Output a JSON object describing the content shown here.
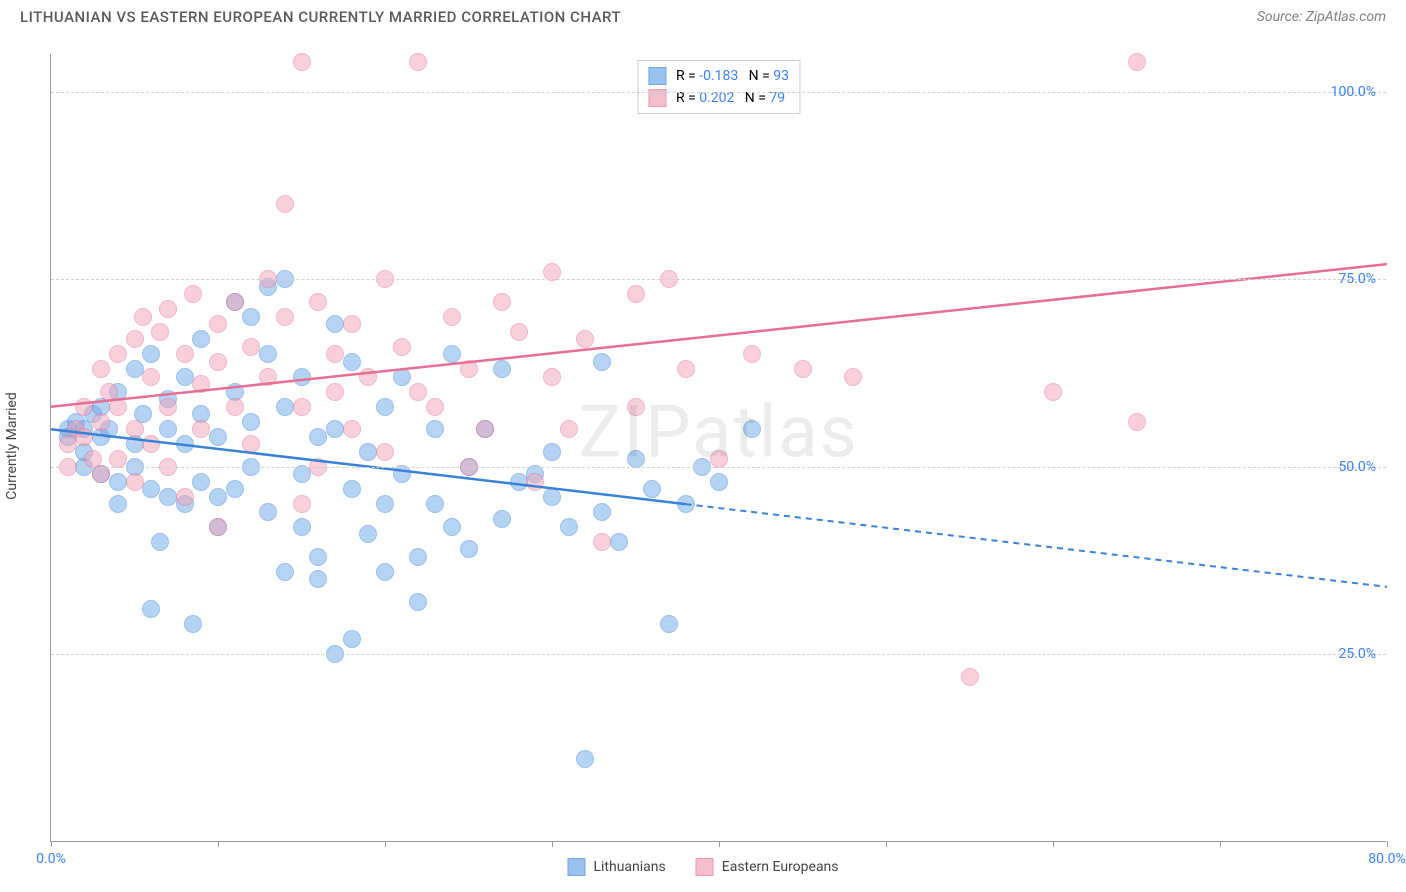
{
  "title": "LITHUANIAN VS EASTERN EUROPEAN CURRENTLY MARRIED CORRELATION CHART",
  "source": "Source: ZipAtlas.com",
  "watermark": "ZIPatlas",
  "chart": {
    "type": "scatter",
    "ylabel": "Currently Married",
    "xlim": [
      0,
      80
    ],
    "ylim": [
      0,
      105
    ],
    "ytick_values": [
      25,
      50,
      75,
      100
    ],
    "ytick_labels": [
      "25.0%",
      "50.0%",
      "75.0%",
      "100.0%"
    ],
    "xtick_values": [
      0,
      10,
      20,
      30,
      40,
      50,
      60,
      70,
      80
    ],
    "xtick_label_left": "0.0%",
    "xtick_label_right": "80.0%",
    "background_color": "#ffffff",
    "grid_color": "#d0d0d0",
    "axis_color": "#999999",
    "point_radius": 9,
    "point_opacity": 0.5,
    "series": [
      {
        "name": "Lithuanians",
        "color_fill": "#6ea8e8",
        "color_stroke": "#3b82d6",
        "r_value": "-0.183",
        "n_value": "93",
        "trend": {
          "x1": 0,
          "y1": 55,
          "x2": 80,
          "y2": 34,
          "solid_until_x": 38
        },
        "points": [
          [
            1,
            55
          ],
          [
            1,
            54
          ],
          [
            1.5,
            56
          ],
          [
            2,
            55
          ],
          [
            2,
            50
          ],
          [
            2,
            52
          ],
          [
            2.5,
            57
          ],
          [
            3,
            54
          ],
          [
            3,
            49
          ],
          [
            3,
            58
          ],
          [
            3.5,
            55
          ],
          [
            4,
            60
          ],
          [
            4,
            48
          ],
          [
            4,
            45
          ],
          [
            5,
            63
          ],
          [
            5,
            53
          ],
          [
            5,
            50
          ],
          [
            5.5,
            57
          ],
          [
            6,
            65
          ],
          [
            6,
            47
          ],
          [
            6,
            31
          ],
          [
            6.5,
            40
          ],
          [
            7,
            59
          ],
          [
            7,
            55
          ],
          [
            7,
            46
          ],
          [
            8,
            53
          ],
          [
            8,
            62
          ],
          [
            8,
            45
          ],
          [
            8.5,
            29
          ],
          [
            9,
            67
          ],
          [
            9,
            57
          ],
          [
            9,
            48
          ],
          [
            10,
            54
          ],
          [
            10,
            46
          ],
          [
            10,
            42
          ],
          [
            11,
            60
          ],
          [
            11,
            72
          ],
          [
            11,
            47
          ],
          [
            12,
            70
          ],
          [
            12,
            56
          ],
          [
            12,
            50
          ],
          [
            13,
            74
          ],
          [
            13,
            65
          ],
          [
            13,
            44
          ],
          [
            14,
            58
          ],
          [
            14,
            75
          ],
          [
            14,
            36
          ],
          [
            15,
            62
          ],
          [
            15,
            49
          ],
          [
            15,
            42
          ],
          [
            16,
            54
          ],
          [
            16,
            38
          ],
          [
            16,
            35
          ],
          [
            17,
            69
          ],
          [
            17,
            55
          ],
          [
            17,
            25
          ],
          [
            18,
            64
          ],
          [
            18,
            47
          ],
          [
            18,
            27
          ],
          [
            19,
            52
          ],
          [
            19,
            41
          ],
          [
            20,
            58
          ],
          [
            20,
            45
          ],
          [
            20,
            36
          ],
          [
            21,
            62
          ],
          [
            21,
            49
          ],
          [
            22,
            38
          ],
          [
            22,
            32
          ],
          [
            23,
            55
          ],
          [
            23,
            45
          ],
          [
            24,
            65
          ],
          [
            24,
            42
          ],
          [
            25,
            50
          ],
          [
            25,
            39
          ],
          [
            26,
            55
          ],
          [
            27,
            63
          ],
          [
            27,
            43
          ],
          [
            28,
            48
          ],
          [
            29,
            49
          ],
          [
            30,
            46
          ],
          [
            30,
            52
          ],
          [
            31,
            42
          ],
          [
            32,
            11
          ],
          [
            33,
            64
          ],
          [
            33,
            44
          ],
          [
            34,
            40
          ],
          [
            35,
            51
          ],
          [
            36,
            47
          ],
          [
            37,
            29
          ],
          [
            38,
            45
          ],
          [
            39,
            50
          ],
          [
            40,
            48
          ],
          [
            42,
            55
          ]
        ]
      },
      {
        "name": "Eastern Europeans",
        "color_fill": "#f2a3b8",
        "color_stroke": "#e76f94",
        "r_value": "0.202",
        "n_value": "79",
        "trend": {
          "x1": 0,
          "y1": 58,
          "x2": 80,
          "y2": 77,
          "solid_until_x": 80
        },
        "points": [
          [
            1,
            50
          ],
          [
            1,
            53
          ],
          [
            1.5,
            55
          ],
          [
            2,
            54
          ],
          [
            2,
            58
          ],
          [
            2.5,
            51
          ],
          [
            3,
            63
          ],
          [
            3,
            56
          ],
          [
            3,
            49
          ],
          [
            3.5,
            60
          ],
          [
            4,
            65
          ],
          [
            4,
            58
          ],
          [
            4,
            51
          ],
          [
            5,
            67
          ],
          [
            5,
            55
          ],
          [
            5,
            48
          ],
          [
            5.5,
            70
          ],
          [
            6,
            62
          ],
          [
            6,
            53
          ],
          [
            6.5,
            68
          ],
          [
            7,
            71
          ],
          [
            7,
            58
          ],
          [
            7,
            50
          ],
          [
            8,
            65
          ],
          [
            8,
            46
          ],
          [
            8.5,
            73
          ],
          [
            9,
            61
          ],
          [
            9,
            55
          ],
          [
            10,
            69
          ],
          [
            10,
            64
          ],
          [
            10,
            42
          ],
          [
            11,
            72
          ],
          [
            11,
            58
          ],
          [
            12,
            66
          ],
          [
            12,
            53
          ],
          [
            13,
            75
          ],
          [
            13,
            62
          ],
          [
            14,
            70
          ],
          [
            14,
            85
          ],
          [
            15,
            104
          ],
          [
            15,
            58
          ],
          [
            15,
            45
          ],
          [
            16,
            72
          ],
          [
            16,
            50
          ],
          [
            17,
            65
          ],
          [
            17,
            60
          ],
          [
            18,
            69
          ],
          [
            18,
            55
          ],
          [
            19,
            62
          ],
          [
            20,
            75
          ],
          [
            20,
            52
          ],
          [
            21,
            66
          ],
          [
            22,
            104
          ],
          [
            22,
            60
          ],
          [
            23,
            58
          ],
          [
            24,
            70
          ],
          [
            25,
            50
          ],
          [
            25,
            63
          ],
          [
            26,
            55
          ],
          [
            27,
            72
          ],
          [
            28,
            68
          ],
          [
            29,
            48
          ],
          [
            30,
            76
          ],
          [
            30,
            62
          ],
          [
            31,
            55
          ],
          [
            32,
            67
          ],
          [
            33,
            40
          ],
          [
            35,
            73
          ],
          [
            35,
            58
          ],
          [
            37,
            75
          ],
          [
            38,
            63
          ],
          [
            40,
            51
          ],
          [
            42,
            65
          ],
          [
            45,
            63
          ],
          [
            48,
            62
          ],
          [
            55,
            22
          ],
          [
            60,
            60
          ],
          [
            65,
            104
          ],
          [
            65,
            56
          ]
        ]
      }
    ]
  },
  "legend_top": {
    "r_label": "R =",
    "n_label": "N =",
    "value_color": "#3b82f6"
  },
  "legend_bottom_labels": [
    "Lithuanians",
    "Eastern Europeans"
  ]
}
